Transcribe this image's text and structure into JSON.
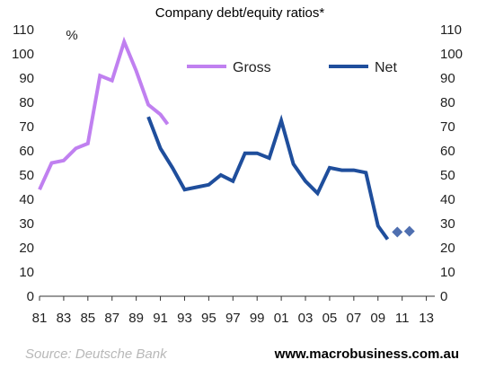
{
  "chart_data": {
    "type": "line",
    "title": "Company debt/equity ratios*",
    "ylabel": "%",
    "ylim": [
      0,
      110
    ],
    "yticks": [
      0,
      10,
      20,
      30,
      40,
      50,
      60,
      70,
      80,
      90,
      100,
      110
    ],
    "xlim": [
      1981,
      2013.7
    ],
    "xticks": [
      "81",
      "83",
      "85",
      "87",
      "89",
      "91",
      "93",
      "95",
      "97",
      "99",
      "01",
      "03",
      "05",
      "07",
      "09",
      "11",
      "13"
    ],
    "grid": false,
    "legend_position": "top",
    "series": [
      {
        "name": "Gross",
        "color": "#c080f0",
        "x": [
          1981,
          1982,
          1983,
          1984,
          1985,
          1986,
          1987,
          1988,
          1989,
          1990,
          1991,
          1991.6
        ],
        "values": [
          44,
          55,
          56,
          61,
          63,
          91,
          89,
          105,
          93,
          79,
          75,
          71
        ]
      },
      {
        "name": "Net",
        "color": "#1f4e9c",
        "x": [
          1990,
          1991,
          1992,
          1993,
          1994,
          1995,
          1996,
          1997,
          1998,
          1999,
          2000,
          2001,
          2002,
          2003,
          2004,
          2005,
          2006,
          2007,
          2008,
          2009,
          2009.8
        ],
        "values": [
          74,
          61,
          53,
          44,
          45,
          46,
          50,
          47.5,
          59,
          59,
          57,
          72.5,
          54.5,
          47.5,
          42.5,
          53,
          52,
          52,
          51,
          29,
          23.5
        ]
      },
      {
        "name": "",
        "marker": "diamond",
        "color": "#4f6fb0",
        "x": [
          2010.6,
          2011.6
        ],
        "values": [
          26.5,
          26.8
        ]
      }
    ]
  },
  "footer": {
    "source": "Source: Deutsche Bank",
    "url": "www.macrobusiness.com.au"
  }
}
